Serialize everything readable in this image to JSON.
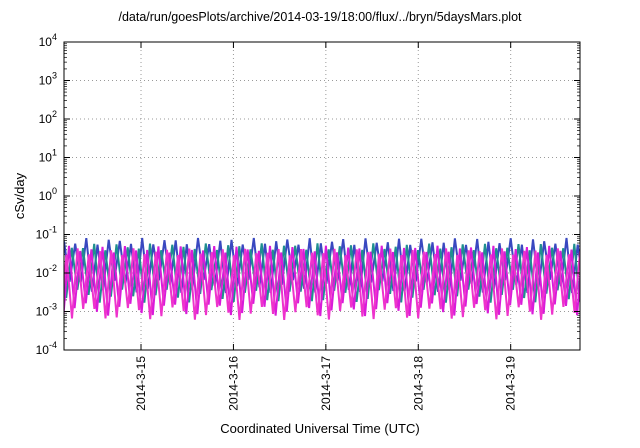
{
  "chart_data": {
    "type": "line",
    "title": "/data/run/goesPlots/archive/2014-03-19/18:00/flux/../bryn/5daysMars.plot",
    "xlabel": "Coordinated Universal Time (UTC)",
    "ylabel": "cSv/day",
    "y_scale": "log",
    "ylim": [
      0.0001,
      10000
    ],
    "y_ticks_exponents": [
      4,
      3,
      2,
      1,
      0,
      -1,
      -2,
      -3,
      -4
    ],
    "x_total_hours": 134,
    "x_ticks": [
      {
        "hour": 20,
        "label": "2014-3-15"
      },
      {
        "hour": 44,
        "label": "2014-3-16"
      },
      {
        "hour": 68,
        "label": "2014-3-17"
      },
      {
        "hour": 92,
        "label": "2014-3-18"
      },
      {
        "hour": 116,
        "label": "2014-3-19"
      }
    ],
    "grid": true,
    "grid_color": "#9a9a9a",
    "series": [
      {
        "name": "blue",
        "color": "#3948c0",
        "log_max": -1.18,
        "log_min": -2.35,
        "peak_value": 0.066,
        "trough_value": 0.0045,
        "period_hours": 2.9,
        "phase": 0.0
      },
      {
        "name": "teal",
        "color": "#1f8f8f",
        "log_max": -1.32,
        "log_min": -2.6,
        "peak_value": 0.048,
        "trough_value": 0.0025,
        "period_hours": 2.9,
        "phase": 0.3
      },
      {
        "name": "magenta",
        "color": "#d91bd9",
        "log_max": -1.38,
        "log_min": -2.95,
        "peak_value": 0.042,
        "trough_value": 0.0011,
        "period_hours": 2.9,
        "phase": 0.55
      },
      {
        "name": "magenta2",
        "color": "#ee33cc",
        "log_max": -1.45,
        "log_min": -3.05,
        "peak_value": 0.035,
        "trough_value": 0.0009,
        "period_hours": 2.9,
        "phase": 0.78
      }
    ]
  }
}
